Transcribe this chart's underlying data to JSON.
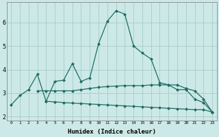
{
  "xlabel": "Humidex (Indice chaleur)",
  "bg_color": "#cce9e7",
  "grid_color": "#aacfcc",
  "line_color": "#1e6b64",
  "x_ticks": [
    0,
    1,
    2,
    3,
    4,
    5,
    6,
    7,
    8,
    9,
    10,
    11,
    12,
    13,
    14,
    15,
    16,
    17,
    18,
    19,
    20,
    21,
    22,
    23
  ],
  "y_ticks": [
    2,
    3,
    4,
    5,
    6
  ],
  "ylim": [
    1.85,
    6.85
  ],
  "xlim": [
    -0.5,
    23.5
  ],
  "line1_x": [
    0,
    1,
    2,
    3,
    4,
    5,
    6,
    7,
    8,
    9,
    10,
    11,
    12,
    13,
    14,
    15,
    16,
    17,
    18,
    19,
    20,
    21,
    22,
    23
  ],
  "line1_y": [
    2.5,
    2.9,
    3.15,
    3.8,
    2.65,
    3.5,
    3.55,
    4.25,
    3.5,
    3.65,
    5.1,
    6.05,
    6.5,
    6.35,
    5.0,
    4.7,
    4.45,
    3.45,
    3.35,
    3.15,
    3.15,
    2.75,
    2.6,
    2.2
  ],
  "line2_x": [
    3,
    4,
    5,
    6,
    7,
    8,
    9,
    10,
    11,
    12,
    13,
    14,
    15,
    16,
    17,
    18,
    19,
    20,
    21,
    22,
    23
  ],
  "line2_y": [
    3.1,
    3.1,
    3.1,
    3.1,
    3.1,
    3.15,
    3.2,
    3.25,
    3.28,
    3.3,
    3.32,
    3.32,
    3.32,
    3.35,
    3.35,
    3.35,
    3.35,
    3.2,
    3.1,
    2.75,
    2.2
  ],
  "line3_x": [
    4,
    5,
    6,
    7,
    8,
    9,
    10,
    11,
    12,
    13,
    14,
    15,
    16,
    17,
    18,
    19,
    20,
    21,
    22,
    23
  ],
  "line3_y": [
    2.65,
    2.63,
    2.6,
    2.58,
    2.56,
    2.54,
    2.52,
    2.5,
    2.48,
    2.46,
    2.44,
    2.42,
    2.4,
    2.38,
    2.36,
    2.34,
    2.32,
    2.3,
    2.3,
    2.2
  ]
}
